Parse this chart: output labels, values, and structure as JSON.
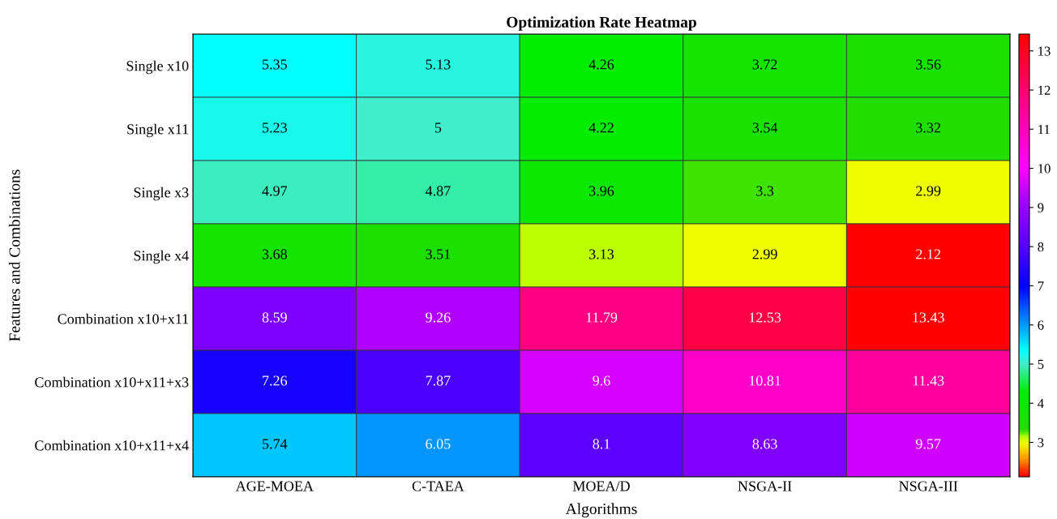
{
  "chart_data": {
    "type": "heatmap",
    "title": "Optimization Rate Heatmap",
    "xlabel": "Algorithms",
    "ylabel": "Features and Combinations",
    "categories": [
      "AGE-MOEA",
      "C-TAEA",
      "MOEA/D",
      "NSGA-II",
      "NSGA-III"
    ],
    "y_categories": [
      "Single x10",
      "Single x11",
      "Single x3",
      "Single x4",
      "Combination x10+x11",
      "Combination x10+x11+x3",
      "Combination x10+x11+x4"
    ],
    "cells": [
      [
        5.35,
        5.13,
        4.26,
        3.72,
        3.56
      ],
      [
        5.23,
        5,
        4.22,
        3.54,
        3.32
      ],
      [
        4.97,
        4.87,
        3.96,
        3.3,
        2.99
      ],
      [
        3.68,
        3.51,
        3.13,
        2.99,
        2.12
      ],
      [
        8.59,
        9.26,
        11.79,
        12.53,
        13.43
      ],
      [
        7.26,
        7.87,
        9.6,
        10.81,
        11.43
      ],
      [
        5.74,
        6.05,
        8.1,
        8.63,
        9.57
      ]
    ],
    "data_labels": true,
    "clim": [
      2.12,
      13.43
    ],
    "cticks": [
      3,
      4,
      5,
      6,
      7,
      8,
      9,
      10,
      11,
      12,
      13
    ]
  }
}
